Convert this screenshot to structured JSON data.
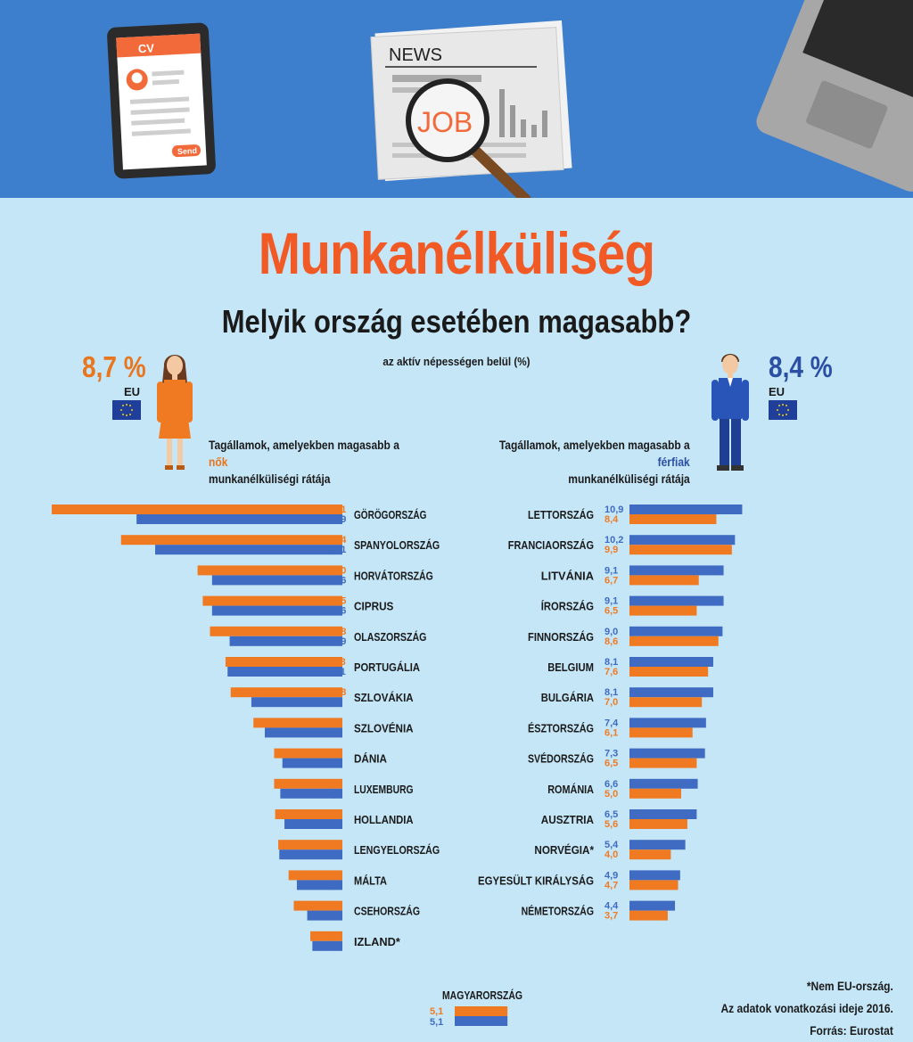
{
  "banner": {
    "cv_label": "CV",
    "send_label": "Send",
    "news_label": "NEWS",
    "job_label": "JOB"
  },
  "title": "Munkanélküliség",
  "subtitle": "Melyik ország esetében magasabb?",
  "unit_note": "az aktív népességen belül (%)",
  "eu": {
    "women_value": "8,7 %",
    "men_value": "8,4 %",
    "label": "EU"
  },
  "headings": {
    "women_line1": "Tagállamok, amelyekben magasabb a",
    "women_highlight": "nők",
    "women_line3": "munkanélküliségi rátája",
    "men_line1": "Tagállamok, amelyekben magasabb a",
    "men_highlight": "férfiak",
    "men_line3": "munkanélküliségi rátája"
  },
  "notes": {
    "non_eu": "*Nem EU-ország.",
    "reference": "Az adatok vonatkozási ideje 2016.",
    "source": "Forrás: Eurostat"
  },
  "colors": {
    "women": "#f07a22",
    "men": "#3f6cc2",
    "title": "#f15a24"
  },
  "chart_data": [
    {
      "type": "bar",
      "orientation": "horizontal",
      "categories": [
        "GÖRÖGORSZÁG",
        "SPANYOLORSZÁG",
        "HORVÁTORSZÁG",
        "CIPRUS",
        "OLASZORSZÁG",
        "PORTUGÁLIA",
        "SZLOVÁKIA",
        "SZLOVÉNIA",
        "DÁNIA",
        "LUXEMBURG",
        "HOLLANDIA",
        "LENGYELORSZÁG",
        "MÁLTA",
        "CSEHORSZÁG",
        "IZLAND*"
      ],
      "series": [
        {
          "name": "nők",
          "values": [
            28.1,
            21.4,
            14.0,
            13.5,
            12.8,
            11.3,
            10.8,
            8.6,
            6.6,
            6.6,
            6.5,
            6.2,
            5.2,
            4.7,
            3.1
          ]
        },
        {
          "name": "férfiak",
          "values": [
            19.9,
            18.1,
            12.6,
            12.6,
            10.9,
            11.1,
            8.8,
            7.5,
            5.8,
            6.0,
            5.6,
            6.1,
            4.4,
            3.4,
            2.9
          ]
        }
      ],
      "value_labels": {
        "nők": [
          "28,1",
          "21,4",
          "14,0",
          "13,5",
          "12,8",
          "11,3",
          "10,8",
          "8,6",
          "6,6",
          "6,6",
          "6,5",
          "6,2",
          "5,2",
          "4,7",
          "3,1"
        ],
        "férfiak": [
          "19,9",
          "18,1",
          "12,6",
          "12,6",
          "10,9",
          "11,1",
          "8,8",
          "7,5",
          "5,8",
          "6,0",
          "5,6",
          "6,1",
          "4,4",
          "3,4",
          "2,9"
        ]
      }
    },
    {
      "type": "bar",
      "orientation": "horizontal",
      "categories": [
        "LETTORSZÁG",
        "FRANCIAORSZÁG",
        "LITVÁNIA",
        "ÍRORSZÁG",
        "FINNORSZÁG",
        "BELGIUM",
        "BULGÁRIA",
        "ÉSZTORSZÁG",
        "SVÉDORSZÁG",
        "ROMÁNIA",
        "AUSZTRIA",
        "NORVÉGIA*",
        "EGYESÜLT KIRÁLYSÁG",
        "NÉMETORSZÁG"
      ],
      "series": [
        {
          "name": "férfiak",
          "values": [
            10.9,
            10.2,
            9.1,
            9.1,
            9.0,
            8.1,
            8.1,
            7.4,
            7.3,
            6.6,
            6.5,
            5.4,
            4.9,
            4.4
          ]
        },
        {
          "name": "nők",
          "values": [
            8.4,
            9.9,
            6.7,
            6.5,
            8.6,
            7.6,
            7.0,
            6.1,
            6.5,
            5.0,
            5.6,
            4.0,
            4.7,
            3.7
          ]
        }
      ],
      "value_labels": {
        "férfiak": [
          "10,9",
          "10,2",
          "9,1",
          "9,1",
          "9,0",
          "8,1",
          "8,1",
          "7,4",
          "7,3",
          "6,6",
          "6,5",
          "5,4",
          "4,9",
          "4,4"
        ],
        "nők": [
          "8,4",
          "9,9",
          "6,7",
          "6,5",
          "8,6",
          "7,6",
          "7,0",
          "6,1",
          "6,5",
          "5,0",
          "5,6",
          "4,0",
          "4,7",
          "3,7"
        ]
      }
    },
    {
      "type": "bar",
      "orientation": "horizontal",
      "categories": [
        "MAGYARORSZÁG"
      ],
      "series": [
        {
          "name": "nők",
          "values": [
            5.1
          ]
        },
        {
          "name": "férfiak",
          "values": [
            5.1
          ]
        }
      ],
      "value_labels": {
        "nők": [
          "5,1"
        ],
        "férfiak": [
          "5,1"
        ]
      }
    }
  ]
}
